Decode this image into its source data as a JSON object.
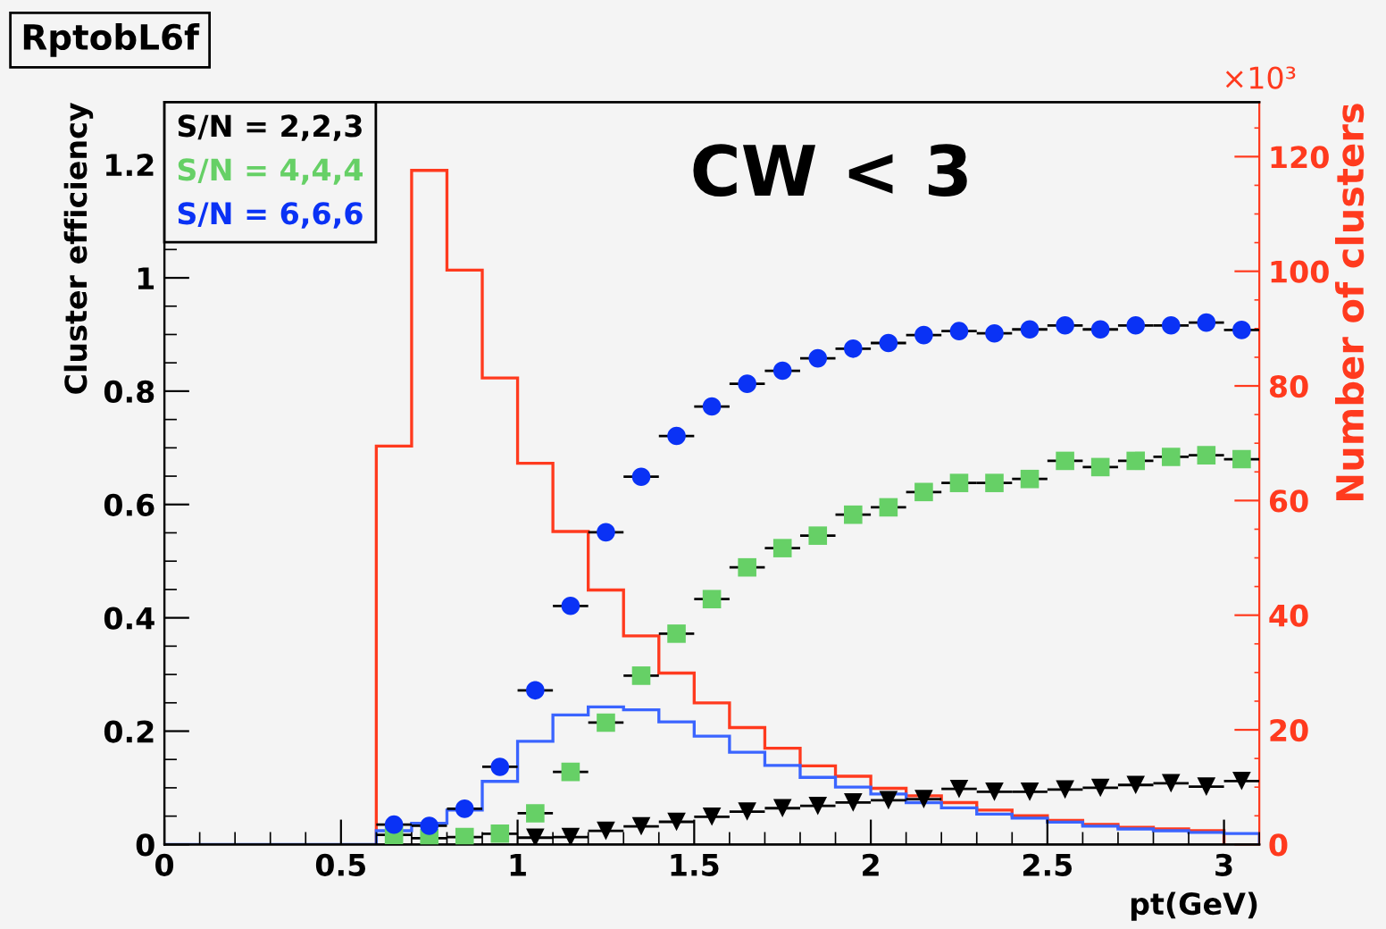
{
  "chart_data": {
    "type": "scatter",
    "title": "RptobL6f",
    "xlabel": "pt(GeV)",
    "ylabel": "Cluster efficiency",
    "y2label": "Number of clusters",
    "x": [
      0.65,
      0.75,
      0.85,
      0.95,
      1.05,
      1.15,
      1.25,
      1.35,
      1.45,
      1.55,
      1.65,
      1.75,
      1.85,
      1.95,
      2.05,
      2.15,
      2.25,
      2.35,
      2.45,
      2.55,
      2.65,
      2.75,
      2.85,
      2.95,
      3.05
    ],
    "series": [
      {
        "name": "S/N = 2,2,3",
        "color": "#000000",
        "marker": "triangle",
        "values": [
          null,
          null,
          null,
          null,
          0.012,
          0.013,
          0.024,
          0.032,
          0.04,
          0.049,
          0.058,
          0.064,
          0.068,
          0.074,
          0.078,
          0.08,
          0.098,
          0.093,
          0.093,
          0.097,
          0.1,
          0.105,
          0.108,
          0.102,
          0.112
        ],
        "xerrors": [
          null,
          null,
          null,
          null,
          0.05,
          0.05,
          0.05,
          0.05,
          0.05,
          0.05,
          0.05,
          0.05,
          0.05,
          0.05,
          0.05,
          0.05,
          0.05,
          0.05,
          0.05,
          0.05,
          0.05,
          0.05,
          0.05,
          0.05,
          0.05
        ]
      },
      {
        "name": "S/N = 4,4,4",
        "color": "#66d066",
        "marker": "square",
        "values": [
          0.017,
          0.011,
          0.013,
          0.019,
          0.055,
          0.128,
          0.215,
          0.298,
          0.372,
          0.433,
          0.489,
          0.523,
          0.545,
          0.582,
          0.595,
          0.622,
          0.638,
          0.638,
          0.645,
          0.677,
          0.666,
          0.677,
          0.684,
          0.687,
          0.68
        ],
        "xerrors": [
          0.05,
          0.05,
          0.05,
          0.05,
          0.05,
          0.05,
          0.05,
          0.05,
          0.05,
          0.05,
          0.05,
          0.05,
          0.05,
          0.05,
          0.05,
          0.05,
          0.05,
          0.05,
          0.05,
          0.05,
          0.05,
          0.05,
          0.05,
          0.05,
          0.05
        ]
      },
      {
        "name": "S/N = 6,6,6",
        "color": "#0a32f5",
        "marker": "circle",
        "values": [
          0.035,
          0.033,
          0.063,
          0.137,
          0.272,
          0.421,
          0.551,
          0.649,
          0.721,
          0.773,
          0.813,
          0.836,
          0.858,
          0.875,
          0.885,
          0.899,
          0.906,
          0.902,
          0.909,
          0.916,
          0.909,
          0.916,
          0.916,
          0.921,
          0.908
        ],
        "xerrors": [
          0.05,
          0.05,
          0.05,
          0.05,
          0.05,
          0.05,
          0.05,
          0.05,
          0.05,
          0.05,
          0.05,
          0.05,
          0.05,
          0.05,
          0.05,
          0.05,
          0.05,
          0.05,
          0.05,
          0.05,
          0.05,
          0.05,
          0.05,
          0.05,
          0.05
        ]
      },
      {
        "type": "histogram",
        "axis": "y2",
        "color": "#ff3a1e",
        "bins": [
          0.6,
          0.7,
          0.8,
          0.9,
          1.0,
          1.1,
          1.2,
          1.3,
          1.4,
          1.5,
          1.6,
          1.7,
          1.8,
          1.9,
          2.0,
          2.1,
          2.2,
          2.3,
          2.4,
          2.5,
          2.6,
          2.7,
          2.8,
          2.9,
          3.0
        ],
        "values": [
          69.5,
          117.6,
          100.2,
          81.4,
          66.5,
          54.6,
          44.4,
          36.4,
          29.9,
          24.7,
          20.4,
          16.8,
          13.7,
          11.9,
          9.8,
          8.5,
          7.3,
          6.0,
          5.0,
          4.2,
          3.5,
          3.0,
          2.7,
          2.4
        ]
      },
      {
        "type": "histogram",
        "axis": "y2",
        "color": "#3a64ff",
        "bins": [
          0,
          0.1,
          0.2,
          0.3,
          0.4,
          0.5,
          0.6,
          0.7,
          0.8,
          0.9,
          1.0,
          1.1,
          1.2,
          1.3,
          1.4,
          1.5,
          1.6,
          1.7,
          1.8,
          1.9,
          2.0,
          2.1,
          2.2,
          2.3,
          2.4,
          2.5,
          2.6,
          2.7,
          2.8,
          2.9,
          3.0,
          3.1
        ],
        "values": [
          0,
          0,
          0,
          0,
          0,
          0,
          2.4,
          3.7,
          6.0,
          11.0,
          18.0,
          22.6,
          24.0,
          23.5,
          21.4,
          18.9,
          16.1,
          13.8,
          11.7,
          10.0,
          8.8,
          7.3,
          6.4,
          5.3,
          4.6,
          3.9,
          3.2,
          2.7,
          2.4,
          2.1,
          1.9
        ]
      }
    ],
    "xlim": [
      0,
      3.1
    ],
    "xticks": [
      0,
      0.5,
      1,
      1.5,
      2,
      2.5,
      3
    ],
    "ylim": [
      0,
      1.31
    ],
    "yticks": [
      0,
      0.2,
      0.4,
      0.6,
      0.8,
      1,
      1.2
    ],
    "y2lim": [
      0,
      129.5
    ],
    "y2ticks": [
      0,
      20,
      40,
      60,
      80,
      100,
      120
    ],
    "annotations": [
      "CW < 3",
      "×10³"
    ],
    "legend": "top left",
    "grid": false
  }
}
